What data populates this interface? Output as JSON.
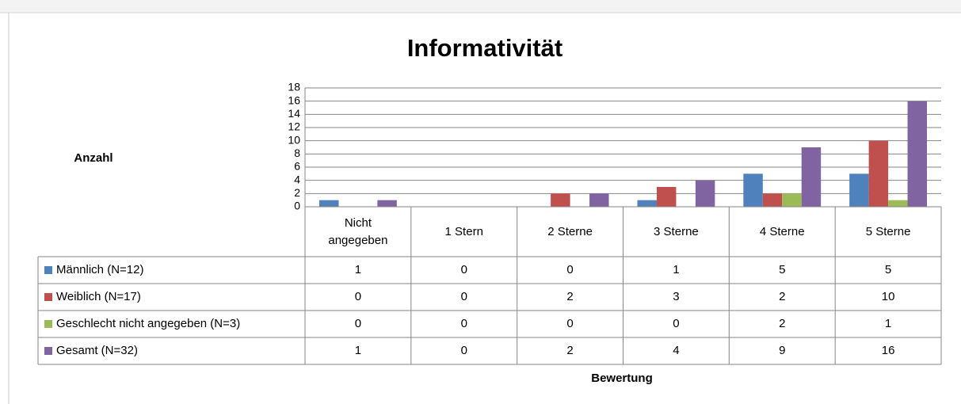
{
  "chart_data": {
    "type": "bar",
    "title": "Informativität",
    "y_label": "Anzahl",
    "x_label": "Bewertung",
    "categories": [
      "Nicht angegeben",
      "1 Stern",
      "2 Sterne",
      "3 Sterne",
      "4 Sterne",
      "5 Sterne"
    ],
    "series": [
      {
        "name": "Männlich (N=12)",
        "color": "#4f81bd",
        "values": [
          1,
          0,
          0,
          1,
          5,
          5
        ]
      },
      {
        "name": "Weiblich (N=17)",
        "color": "#c0504d",
        "values": [
          0,
          0,
          2,
          3,
          2,
          10
        ]
      },
      {
        "name": "Geschlecht nicht angegeben (N=3)",
        "color": "#9bbb59",
        "values": [
          0,
          0,
          0,
          0,
          2,
          1
        ]
      },
      {
        "name": "Gesamt (N=32)",
        "color": "#8064a2",
        "values": [
          1,
          0,
          2,
          4,
          9,
          16
        ]
      }
    ],
    "ylim": [
      0,
      18
    ],
    "yticks": [
      0,
      2,
      4,
      6,
      8,
      10,
      12,
      14,
      16,
      18
    ],
    "grid": true,
    "data_table": true
  }
}
